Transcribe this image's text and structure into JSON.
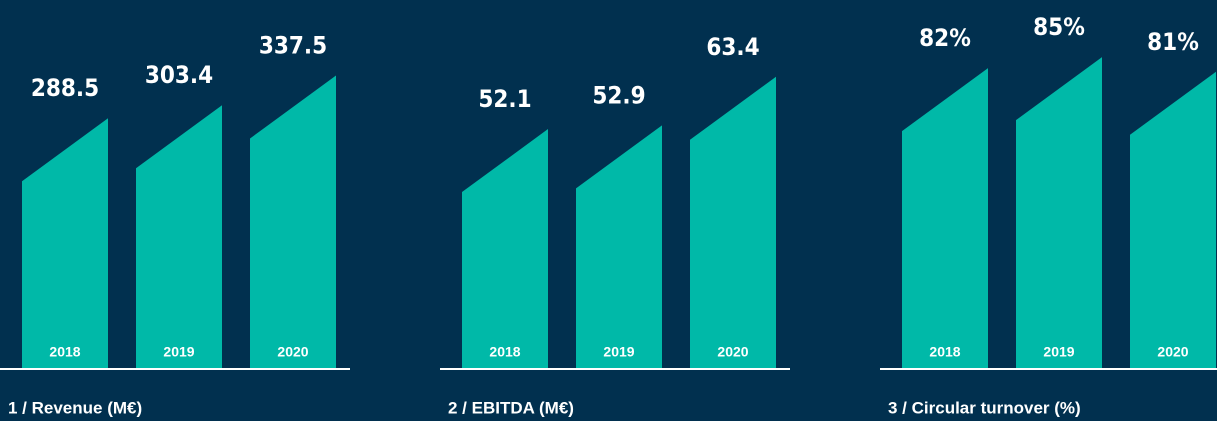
{
  "chart_data": [
    {
      "type": "bar",
      "title": "1 / Revenue (M€)",
      "categories": [
        "2018",
        "2019",
        "2020"
      ],
      "values": [
        288.5,
        303.4,
        337.5
      ],
      "color": "#00b9a8",
      "ylim": [
        0,
        424
      ]
    },
    {
      "type": "bar",
      "title": "2 / EBITDA (M€)",
      "categories": [
        "2018",
        "2019",
        "2020"
      ],
      "values": [
        52.1,
        52.9,
        63.4
      ],
      "color": "#00b9a8",
      "ylim": [
        0,
        80
      ]
    },
    {
      "type": "bar",
      "title": "3 / Circular turnover (%)",
      "categories": [
        "2018",
        "2019",
        "2020"
      ],
      "values": [
        82,
        85,
        81
      ],
      "value_labels": [
        "82%",
        "85%",
        "81%"
      ],
      "color": "#00b9a8",
      "ylim": [
        0,
        100.5
      ]
    }
  ]
}
